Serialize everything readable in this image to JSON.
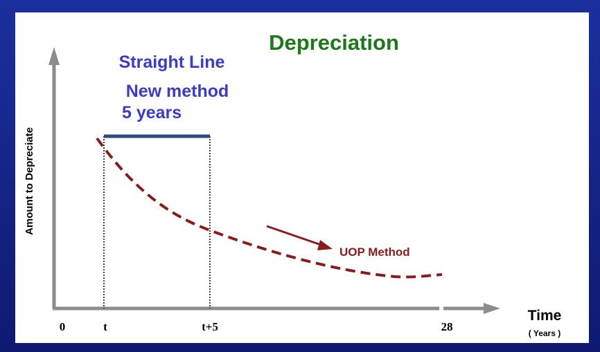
{
  "title": "Depreciation",
  "straight_line": {
    "label": "Straight Line",
    "method": "New method",
    "period": "5 years"
  },
  "uop": {
    "label": "UOP Method"
  },
  "y_axis": {
    "label": "Amount to Depreciate"
  },
  "x_axis": {
    "label": "Time",
    "unit": "( Years )",
    "ticks": [
      "0",
      "t",
      "t+5",
      "28"
    ]
  }
}
